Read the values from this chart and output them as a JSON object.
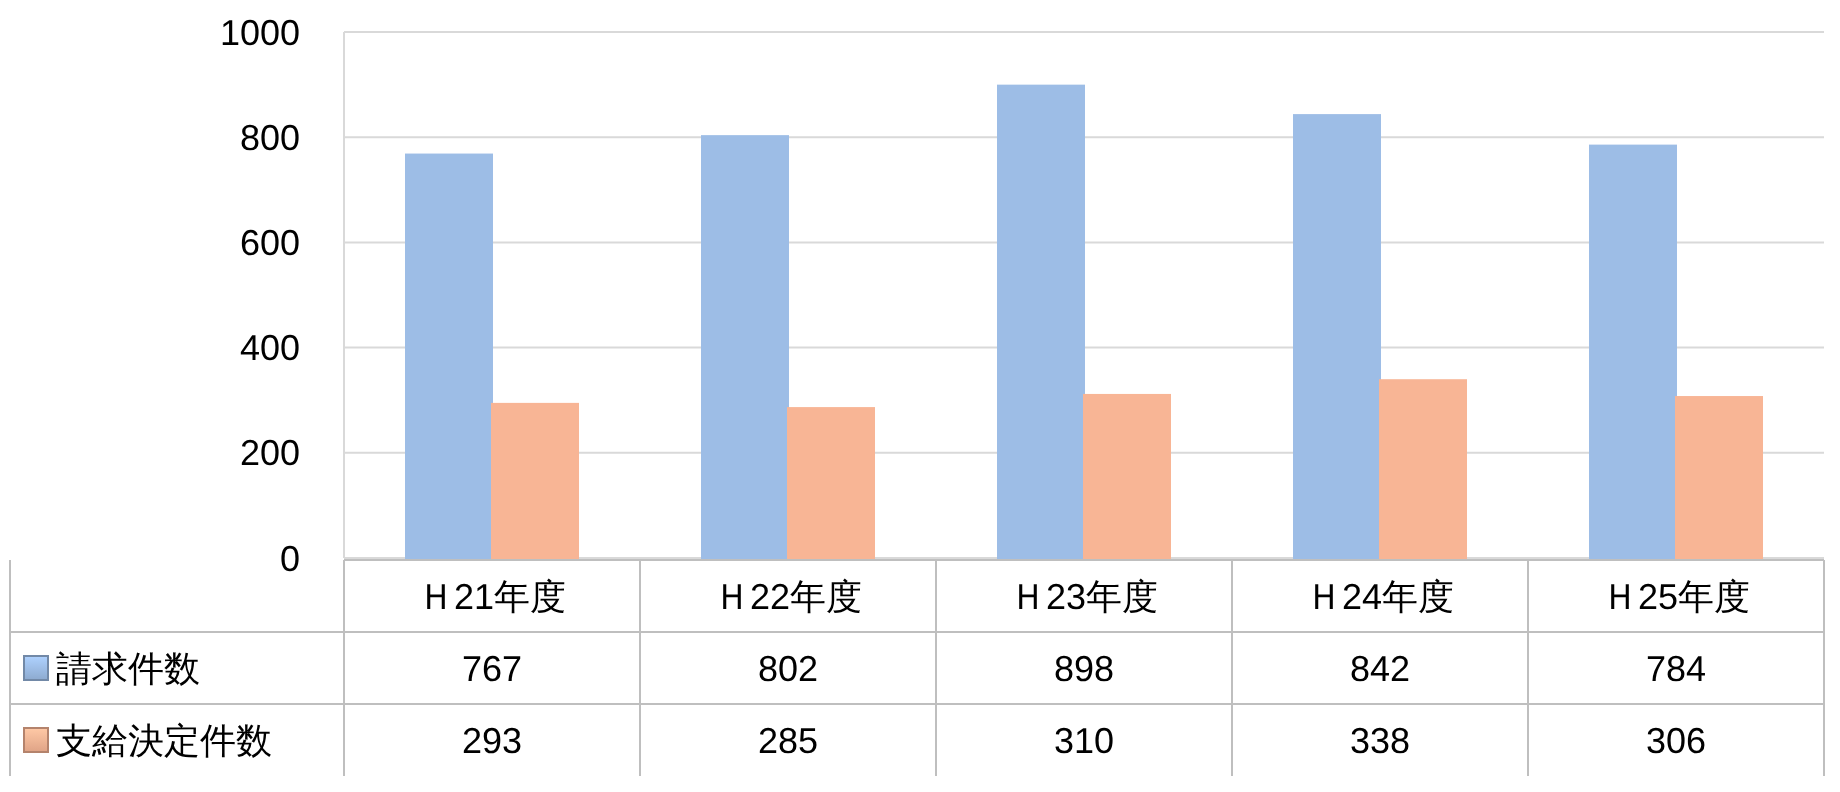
{
  "chart_data": {
    "type": "bar",
    "categories": [
      "Ｈ21年度",
      "Ｈ22年度",
      "Ｈ23年度",
      "Ｈ24年度",
      "Ｈ25年度"
    ],
    "series": [
      {
        "name": "請求件数",
        "color": "#9dbde6",
        "values": [
          767,
          802,
          898,
          842,
          784
        ]
      },
      {
        "name": "支給決定件数",
        "color": "#f8b595",
        "values": [
          293,
          285,
          310,
          338,
          306
        ]
      }
    ],
    "ylim": [
      0,
      1000
    ],
    "yticks": [
      0,
      200,
      400,
      600,
      800,
      1000
    ],
    "grid": "y",
    "legend": "bottom left",
    "data_labels": true
  }
}
